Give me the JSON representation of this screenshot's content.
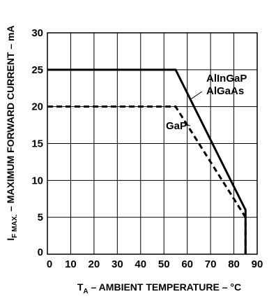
{
  "chart_data": {
    "type": "line",
    "xlabel": {
      "main": "T",
      "sub": "A",
      "rest": " – AMBIENT TEMPERATURE – °C"
    },
    "ylabel": {
      "main": "I",
      "sub": "F MAX.",
      "rest": " – MAXIMUM FORWARD CURRENT – mA"
    },
    "xlim": [
      0,
      90
    ],
    "ylim": [
      0,
      30
    ],
    "x_ticks": [
      0,
      10,
      20,
      30,
      40,
      50,
      60,
      70,
      80,
      90
    ],
    "y_ticks": [
      0,
      5,
      10,
      15,
      20,
      25,
      30
    ],
    "x_tick_labels": [
      "0",
      "10",
      "20",
      "30",
      "40",
      "50",
      "60",
      "70",
      "80",
      "90"
    ],
    "y_tick_labels": [
      "0",
      "5",
      "10",
      "15",
      "20",
      "25",
      "30"
    ],
    "grid": true,
    "series": [
      {
        "name": "AlInGaP AlGaAs",
        "style": "solid",
        "color": "#000000",
        "x": [
          0,
          55,
          85,
          85
        ],
        "y": [
          25,
          25,
          6,
          0
        ]
      },
      {
        "name": "GaP",
        "style": "dashed",
        "color": "#000000",
        "x": [
          0,
          55,
          85,
          85
        ],
        "y": [
          20,
          20,
          5,
          0
        ]
      }
    ],
    "annotations": [
      {
        "lines": [
          "AlInGaP",
          "AlGaAs"
        ],
        "series": 0,
        "point": [
          61.5,
          21
        ]
      },
      {
        "lines": [
          "GaP"
        ],
        "series": 1,
        "point": [
          60,
          17.5
        ]
      }
    ]
  }
}
